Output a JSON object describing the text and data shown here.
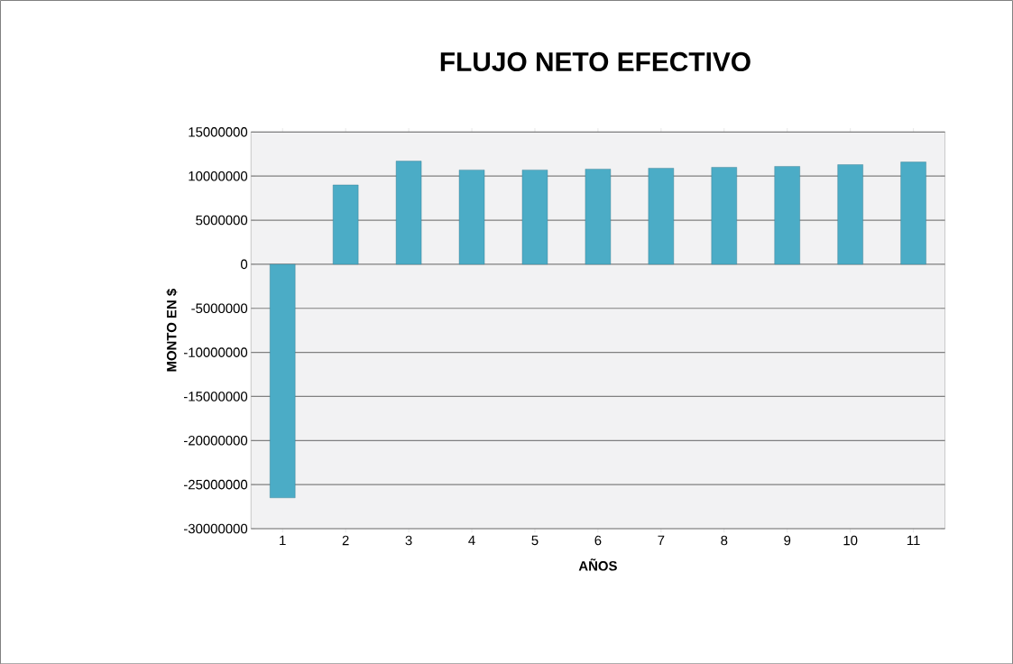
{
  "chart_data": {
    "type": "bar",
    "title": "FLUJO NETO EFECTIVO",
    "xlabel": "AÑOS",
    "ylabel": "MONTO EN $",
    "categories": [
      "1",
      "2",
      "3",
      "4",
      "5",
      "6",
      "7",
      "8",
      "9",
      "10",
      "11"
    ],
    "values": [
      -26500000,
      9000000,
      11700000,
      10700000,
      10700000,
      10800000,
      10900000,
      11000000,
      11100000,
      11300000,
      11600000
    ],
    "color": "#4bacc6",
    "ylim": [
      -30000000,
      15000000
    ],
    "yticks": [
      -30000000,
      -25000000,
      -20000000,
      -15000000,
      -10000000,
      -5000000,
      0,
      5000000,
      10000000,
      15000000
    ],
    "grid": "y"
  }
}
